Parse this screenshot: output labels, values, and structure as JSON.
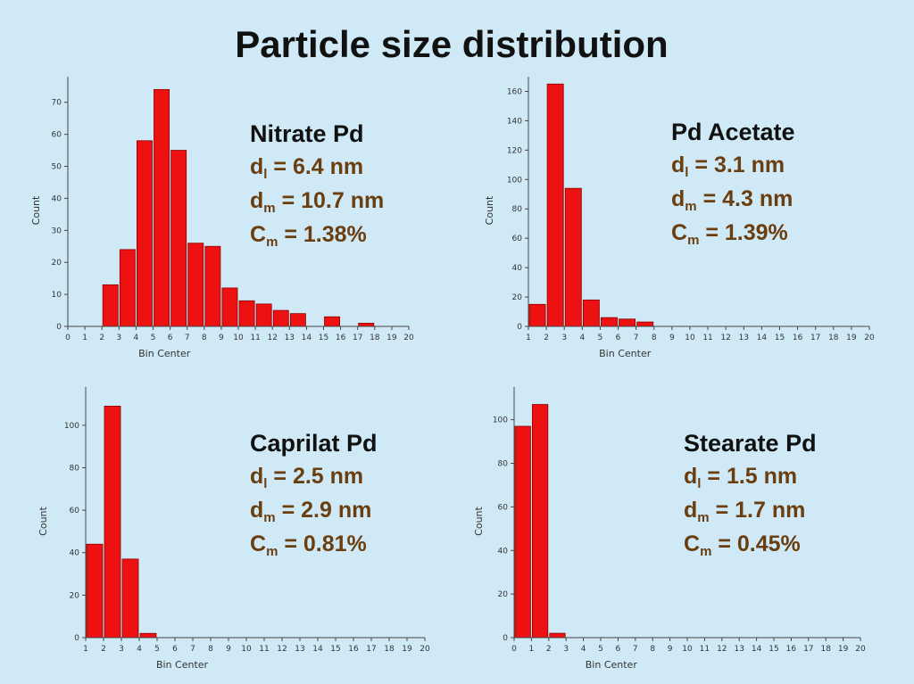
{
  "title": "Particle size distribution",
  "chart_data": [
    {
      "type": "bar",
      "xlabel": "Bin Center",
      "ylabel": "Count",
      "xlim": [
        0,
        20
      ],
      "ylim": [
        0,
        78
      ],
      "xticks": [
        0,
        1,
        2,
        3,
        4,
        5,
        6,
        7,
        8,
        9,
        10,
        11,
        12,
        13,
        14,
        15,
        16,
        17,
        18,
        19,
        20
      ],
      "yticks": [
        0,
        10,
        20,
        30,
        40,
        50,
        60,
        70
      ],
      "x": [
        2.5,
        3.5,
        4.5,
        5.5,
        6.5,
        7.5,
        8.5,
        9.5,
        10.5,
        11.5,
        12.5,
        13.5,
        15.5,
        17.5
      ],
      "values": [
        13,
        24,
        58,
        74,
        55,
        26,
        25,
        12,
        8,
        7,
        5,
        4,
        3,
        1
      ],
      "info": {
        "name": "Nitrate Pd",
        "dl_sym": "d",
        "dl_sub": "l",
        "dl_val": "= 6.4 nm",
        "dm_sym": "d",
        "dm_sub": "m",
        "dm_val": "= 10.7 nm",
        "cm_sym": "C",
        "cm_sub": "m",
        "cm_val": "= 1.38%"
      }
    },
    {
      "type": "bar",
      "xlabel": "Bin Center",
      "ylabel": "Count",
      "xlim": [
        1,
        20
      ],
      "ylim": [
        0,
        170
      ],
      "xticks": [
        1,
        2,
        3,
        4,
        5,
        6,
        7,
        8,
        9,
        10,
        11,
        12,
        13,
        14,
        15,
        16,
        17,
        18,
        19,
        20
      ],
      "yticks": [
        0,
        20,
        40,
        60,
        80,
        100,
        120,
        140,
        160
      ],
      "x": [
        1.5,
        2.5,
        3.5,
        4.5,
        5.5,
        6.5,
        7.5
      ],
      "values": [
        15,
        165,
        94,
        18,
        6,
        5,
        3
      ],
      "info": {
        "name": "Pd Acetate",
        "dl_sym": "d",
        "dl_sub": "l",
        "dl_val": "= 3.1 nm",
        "dm_sym": "d",
        "dm_sub": "m",
        "dm_val": "= 4.3 nm",
        "cm_sym": "C",
        "cm_sub": "m",
        "cm_val": "= 1.39%"
      }
    },
    {
      "type": "bar",
      "xlabel": "Bin Center",
      "ylabel": "Count",
      "xlim": [
        1,
        20
      ],
      "ylim": [
        0,
        118
      ],
      "xticks": [
        1,
        2,
        3,
        4,
        5,
        6,
        7,
        8,
        9,
        10,
        11,
        12,
        13,
        14,
        15,
        16,
        17,
        18,
        19,
        20
      ],
      "yticks": [
        0,
        20,
        40,
        60,
        80,
        100
      ],
      "x": [
        1.5,
        2.5,
        3.5,
        4.5
      ],
      "values": [
        44,
        109,
        37,
        2
      ],
      "info": {
        "name": "Caprilat Pd",
        "dl_sym": "d",
        "dl_sub": "l",
        "dl_val": "= 2.5 nm",
        "dm_sym": "d",
        "dm_sub": "m",
        "dm_val": "= 2.9 nm",
        "cm_sym": "C",
        "cm_sub": "m",
        "cm_val": "= 0.81%"
      }
    },
    {
      "type": "bar",
      "xlabel": "Bin Center",
      "ylabel": "Count",
      "xlim": [
        0,
        20
      ],
      "ylim": [
        0,
        115
      ],
      "xticks": [
        0,
        1,
        2,
        3,
        4,
        5,
        6,
        7,
        8,
        9,
        10,
        11,
        12,
        13,
        14,
        15,
        16,
        17,
        18,
        19,
        20
      ],
      "yticks": [
        0,
        20,
        40,
        60,
        80,
        100
      ],
      "x": [
        0.5,
        1.5,
        2.5
      ],
      "values": [
        97,
        107,
        2
      ],
      "info": {
        "name": "Stearate Pd",
        "dl_sym": "d",
        "dl_sub": "l",
        "dl_val": "= 1.5 nm",
        "dm_sym": "d",
        "dm_sub": "m",
        "dm_val": "= 1.7 nm",
        "cm_sym": "C",
        "cm_sub": "m",
        "cm_val": "= 0.45%"
      }
    }
  ]
}
